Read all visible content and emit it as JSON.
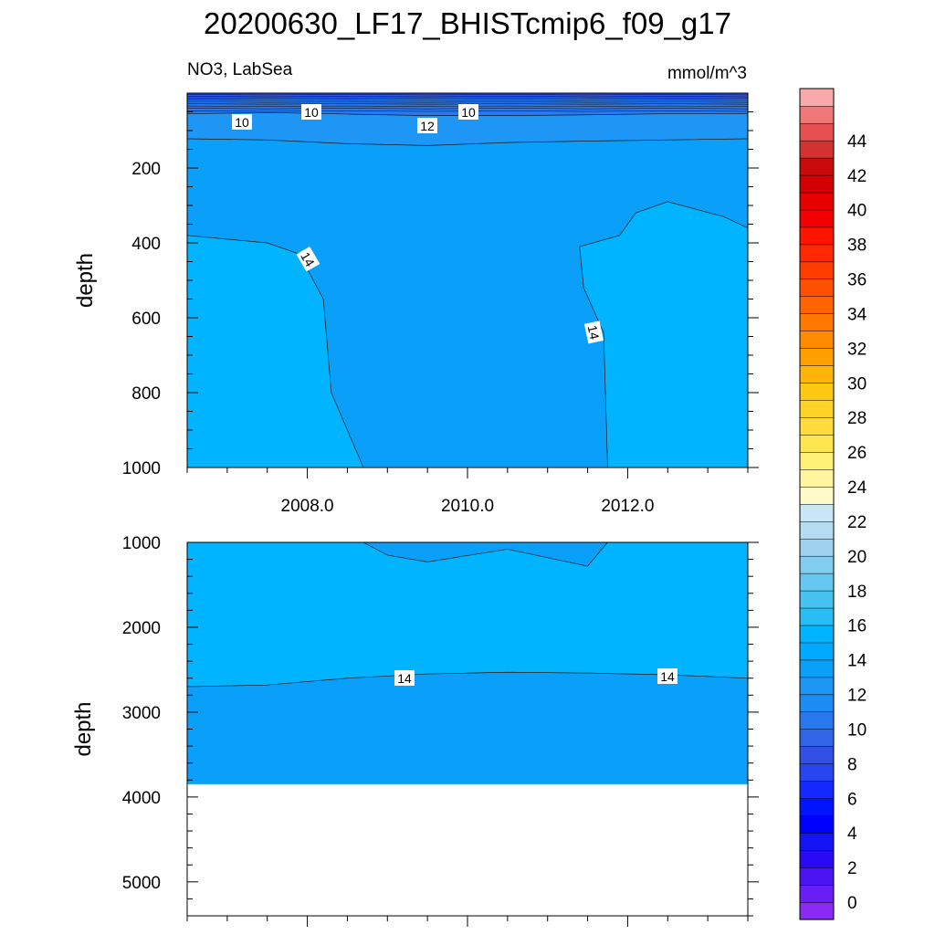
{
  "chart_data": [
    {
      "type": "heatmap",
      "subtype": "filled-contour",
      "title": "20200630_LF17_BHISTcmip6_f09_g17",
      "left_subtitle": "NO3, LabSea",
      "right_subtitle": "mmol/m^3",
      "ylabel": "depth",
      "xlim": [
        2006.5,
        2013.5
      ],
      "ylim": [
        0,
        1000
      ],
      "y_reversed": true,
      "x_ticks": [
        2008.0,
        2010.0,
        2012.0
      ],
      "x_tick_labels": [
        "2008.0",
        "2010.0",
        "2012.0"
      ],
      "y_ticks": [
        200,
        400,
        600,
        800,
        1000
      ],
      "y_tick_labels": [
        "200",
        "400",
        "600",
        "800",
        "1000"
      ],
      "contour_levels": [
        {
          "value": 10,
          "depth": [
            17,
            15,
            16,
            14,
            15,
            14,
            16,
            16
          ]
        },
        {
          "value": 12,
          "depth": [
            55,
            52,
            56,
            60,
            60,
            58,
            55,
            55
          ]
        },
        {
          "value": 14,
          "depth": [
            122,
            125,
            135,
            140,
            132,
            128,
            125,
            122
          ]
        }
      ],
      "contour_x": [
        2006.5,
        2007.5,
        2008.5,
        2009.5,
        2010.5,
        2011.5,
        2012.5,
        2013.5
      ],
      "regions": [
        {
          "range": "< 12",
          "color": "#2878f0",
          "depth_to": 55
        },
        {
          "range": "12-14",
          "color": "#1e96f5",
          "depth_to": 122
        },
        {
          "range": "14-16",
          "color": "#0aa0fa"
        },
        {
          "range": "> 16",
          "color": "#00b4ff"
        }
      ],
      "labels": [
        {
          "text": "10",
          "x": 2006.5,
          "y": 28
        },
        {
          "text": "10",
          "x": 2010.0,
          "y": 28
        },
        {
          "text": "12",
          "x": 2007.2,
          "y": 80
        },
        {
          "text": "12",
          "x": 2009.7,
          "y": 88
        },
        {
          "text": "14",
          "x": 2008.0,
          "y": 460
        },
        {
          "text": "14",
          "x": 2011.7,
          "y": 650
        }
      ],
      "boundaries": {
        "left_blob": [
          [
            2006.5,
            380
          ],
          [
            2007.5,
            400
          ],
          [
            2007.9,
            430
          ],
          [
            2008.2,
            550
          ],
          [
            2008.3,
            800
          ],
          [
            2008.7,
            1000
          ]
        ],
        "right_blob": [
          [
            2011.75,
            1000
          ],
          [
            2011.7,
            640
          ],
          [
            2011.45,
            520
          ],
          [
            2011.4,
            410
          ],
          [
            2011.9,
            380
          ],
          [
            2012.1,
            320
          ],
          [
            2012.5,
            290
          ],
          [
            2013.2,
            330
          ],
          [
            2013.5,
            360
          ]
        ]
      }
    },
    {
      "type": "heatmap",
      "subtype": "filled-contour",
      "ylabel": "depth",
      "xlim": [
        2006.5,
        2013.5
      ],
      "ylim": [
        1000,
        5400
      ],
      "y_reversed": true,
      "y_ticks": [
        1000,
        2000,
        3000,
        4000,
        5000
      ],
      "y_tick_labels": [
        "1000",
        "2000",
        "3000",
        "4000",
        "5000"
      ],
      "data_max_depth": 3850,
      "contour_x": [
        2006.5,
        2007.5,
        2008.5,
        2009.5,
        2010.5,
        2011.5,
        2012.5,
        2013.5
      ],
      "contour_14_depth": [
        2700,
        2680,
        2600,
        2550,
        2530,
        2540,
        2560,
        2600
      ],
      "upper_patch": [
        [
          2008.7,
          1000
        ],
        [
          2009.0,
          1150
        ],
        [
          2009.5,
          1230
        ],
        [
          2010.5,
          1080
        ],
        [
          2011.5,
          1280
        ],
        [
          2011.75,
          1000
        ]
      ],
      "labels": [
        {
          "text": "14",
          "x": 2009.35,
          "y": 2620
        },
        {
          "text": "14",
          "x": 2012.5,
          "y": 2600
        }
      ]
    }
  ],
  "colorbar": {
    "tick_labels": [
      "0",
      "2",
      "4",
      "6",
      "8",
      "10",
      "12",
      "14",
      "16",
      "18",
      "20",
      "22",
      "24",
      "26",
      "28",
      "30",
      "32",
      "34",
      "36",
      "38",
      "40",
      "42",
      "44"
    ],
    "colors": [
      "#8a2bf5",
      "#6a1ef5",
      "#4b14f5",
      "#2a0af5",
      "#1414f5",
      "#0000ff",
      "#0014ff",
      "#1428ff",
      "#2846f0",
      "#3250e6",
      "#3264e6",
      "#2878f0",
      "#1e8cf5",
      "#1e96f5",
      "#0aa0fa",
      "#00aaff",
      "#00b4ff",
      "#28bef5",
      "#46c3f0",
      "#64c8f0",
      "#82cdf0",
      "#a0d2f0",
      "#b4dcf0",
      "#c8e6f5",
      "#fffac8",
      "#fff5a0",
      "#fff078",
      "#ffe650",
      "#ffdc3c",
      "#ffd228",
      "#ffc814",
      "#ffb40a",
      "#ffa000",
      "#ff8c00",
      "#ff7800",
      "#ff6400",
      "#ff5000",
      "#ff3c00",
      "#ff2800",
      "#ff1400",
      "#f50000",
      "#e60000",
      "#d20000",
      "#c80a0a",
      "#d23232",
      "#e65050",
      "#f07878",
      "#f8aaaa"
    ]
  }
}
